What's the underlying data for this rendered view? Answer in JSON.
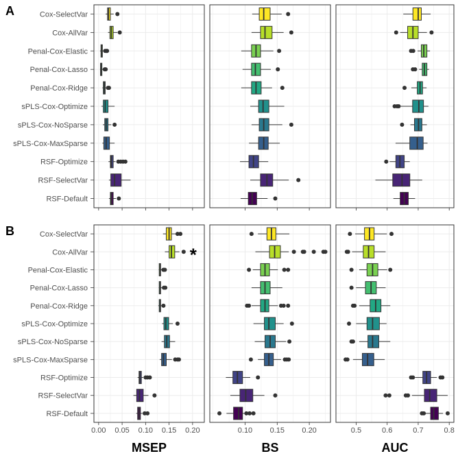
{
  "chart_data": {
    "type": "boxplot",
    "methods": [
      "Cox-SelectVar",
      "Cox-AllVar",
      "Penal-Cox-Elastic",
      "Penal-Cox-Lasso",
      "Penal-Cox-Ridge",
      "sPLS-Cox-Optimize",
      "sPLS-Cox-NoSparse",
      "sPLS-Cox-MaxSparse",
      "RSF-Optimize",
      "RSF-SelectVar",
      "RSF-Default"
    ],
    "fill_colors": [
      "#FDE725",
      "#B8DE29",
      "#7AD151",
      "#44BF70",
      "#22A884",
      "#21918C",
      "#2A788E",
      "#355F8D",
      "#414487",
      "#482576",
      "#440154"
    ],
    "columns": [
      {
        "label": "MSEP",
        "xlim": [
          -0.01,
          0.225
        ],
        "ticks": [
          0.0,
          0.05,
          0.1,
          0.15,
          0.2
        ],
        "tick_labels": [
          "0.00",
          "0.05",
          "0.10",
          "0.15",
          "0.20"
        ]
      },
      {
        "label": "BS",
        "xlim": [
          0.045,
          0.233
        ],
        "ticks": [
          0.1,
          0.15,
          0.2
        ],
        "tick_labels": [
          "0.10",
          "0.15",
          "0.20"
        ]
      },
      {
        "label": "AUC",
        "xlim": [
          0.435,
          0.815
        ],
        "ticks": [
          0.5,
          0.6,
          0.7,
          0.8
        ],
        "tick_labels": [
          "0.5",
          "0.6",
          "0.7",
          "0.8"
        ]
      }
    ],
    "panels": [
      {
        "label": "A",
        "series": {
          "MSEP": [
            {
              "stats": [
                0.015,
                0.019,
                0.021,
                0.025,
                0.032
              ],
              "outliers": [
                0.04
              ]
            },
            {
              "stats": [
                0.02,
                0.024,
                0.027,
                0.031,
                0.04
              ],
              "outliers": [
                0.045
              ]
            },
            {
              "stats": [
                0.003,
                0.005,
                0.006,
                0.008,
                0.01
              ],
              "outliers": [
                0.014,
                0.017,
                0.018
              ]
            },
            {
              "stats": [
                0.003,
                0.004,
                0.005,
                0.007,
                0.009
              ],
              "outliers": [
                0.013,
                0.015
              ]
            },
            {
              "stats": [
                0.008,
                0.01,
                0.012,
                0.014,
                0.016
              ],
              "outliers": [
                0.02,
                0.022
              ]
            },
            {
              "stats": [
                0.006,
                0.01,
                0.014,
                0.02,
                0.034
              ],
              "outliers": []
            },
            {
              "stats": [
                0.009,
                0.013,
                0.016,
                0.02,
                0.027
              ],
              "outliers": [
                0.034
              ]
            },
            {
              "stats": [
                0.008,
                0.011,
                0.016,
                0.023,
                0.034
              ],
              "outliers": []
            },
            {
              "stats": [
                0.021,
                0.025,
                0.027,
                0.031,
                0.036
              ],
              "outliers": [
                0.042,
                0.047,
                0.052,
                0.057
              ]
            },
            {
              "stats": [
                0.022,
                0.026,
                0.034,
                0.048,
                0.068
              ],
              "outliers": []
            },
            {
              "stats": [
                0.022,
                0.025,
                0.027,
                0.031,
                0.037
              ],
              "outliers": [
                0.043
              ]
            }
          ],
          "BS": [
            {
              "stats": [
                0.111,
                0.122,
                0.129,
                0.139,
                0.157
              ],
              "outliers": [
                0.167
              ]
            },
            {
              "stats": [
                0.11,
                0.124,
                0.131,
                0.142,
                0.16
              ],
              "outliers": [
                0.172
              ]
            },
            {
              "stats": [
                0.094,
                0.11,
                0.117,
                0.124,
                0.144
              ],
              "outliers": [
                0.153
              ]
            },
            {
              "stats": [
                0.096,
                0.11,
                0.116,
                0.124,
                0.14
              ],
              "outliers": [
                0.151
              ]
            },
            {
              "stats": [
                0.094,
                0.11,
                0.117,
                0.125,
                0.142
              ],
              "outliers": [
                0.158
              ]
            },
            {
              "stats": [
                0.108,
                0.121,
                0.128,
                0.137,
                0.161
              ],
              "outliers": []
            },
            {
              "stats": [
                0.11,
                0.122,
                0.129,
                0.137,
                0.158
              ],
              "outliers": [
                0.172
              ]
            },
            {
              "stats": [
                0.106,
                0.121,
                0.129,
                0.136,
                0.154
              ],
              "outliers": []
            },
            {
              "stats": [
                0.092,
                0.106,
                0.113,
                0.121,
                0.136
              ],
              "outliers": []
            },
            {
              "stats": [
                0.108,
                0.124,
                0.134,
                0.143,
                0.168
              ],
              "outliers": [
                0.183
              ]
            },
            {
              "stats": [
                0.093,
                0.105,
                0.111,
                0.118,
                0.135
              ],
              "outliers": [
                0.147
              ]
            }
          ],
          "AUC": [
            {
              "stats": [
                0.652,
                0.683,
                0.7,
                0.71,
                0.74
              ],
              "outliers": []
            },
            {
              "stats": [
                0.642,
                0.666,
                0.683,
                0.7,
                0.728
              ],
              "outliers": [
                0.629,
                0.743
              ]
            },
            {
              "stats": [
                0.698,
                0.71,
                0.718,
                0.728,
                0.738
              ],
              "outliers": [
                0.677,
                0.684
              ]
            },
            {
              "stats": [
                0.703,
                0.713,
                0.72,
                0.728,
                0.735
              ],
              "outliers": [
                0.683,
                0.69
              ]
            },
            {
              "stats": [
                0.678,
                0.697,
                0.706,
                0.714,
                0.727
              ],
              "outliers": [
                0.656
              ]
            },
            {
              "stats": [
                0.643,
                0.682,
                0.702,
                0.717,
                0.733
              ],
              "outliers": [
                0.624,
                0.632,
                0.637
              ]
            },
            {
              "stats": [
                0.675,
                0.688,
                0.701,
                0.712,
                0.728
              ],
              "outliers": [
                0.648
              ]
            },
            {
              "stats": [
                0.627,
                0.673,
                0.697,
                0.716,
                0.73
              ],
              "outliers": []
            },
            {
              "stats": [
                0.608,
                0.628,
                0.641,
                0.655,
                0.673
              ],
              "outliers": [
                0.597
              ]
            },
            {
              "stats": [
                0.562,
                0.618,
                0.648,
                0.673,
                0.713
              ],
              "outliers": []
            },
            {
              "stats": [
                0.62,
                0.642,
                0.655,
                0.668,
                0.69
              ],
              "outliers": []
            }
          ]
        }
      },
      {
        "label": "B",
        "series": {
          "MSEP": [
            {
              "stats": [
                0.137,
                0.144,
                0.15,
                0.155,
                0.164
              ],
              "outliers": [
                0.168,
                0.174
              ]
            },
            {
              "stats": [
                0.141,
                0.15,
                0.155,
                0.162,
                0.172
              ],
              "outliers": [
                0.181
              ]
            },
            {
              "stats": [
                0.128,
                0.129,
                0.131,
                0.132,
                0.136
              ],
              "outliers": [
                0.138,
                0.141
              ]
            },
            {
              "stats": [
                0.128,
                0.129,
                0.131,
                0.132,
                0.136
              ],
              "outliers": [
                0.139,
                0.142
              ]
            },
            {
              "stats": [
                0.127,
                0.129,
                0.131,
                0.132,
                0.134
              ],
              "outliers": [
                0.138
              ]
            },
            {
              "stats": [
                0.135,
                0.139,
                0.143,
                0.149,
                0.158
              ],
              "outliers": [
                0.168
              ]
            },
            {
              "stats": [
                0.134,
                0.14,
                0.145,
                0.151,
                0.163
              ],
              "outliers": []
            },
            {
              "stats": [
                0.13,
                0.134,
                0.138,
                0.144,
                0.156
              ],
              "outliers": [
                0.163,
                0.168,
                0.171
              ]
            },
            {
              "stats": [
                0.083,
                0.086,
                0.088,
                0.091,
                0.095
              ],
              "outliers": [
                0.1,
                0.104,
                0.109
              ]
            },
            {
              "stats": [
                0.074,
                0.081,
                0.087,
                0.095,
                0.106
              ],
              "outliers": [
                0.119
              ]
            },
            {
              "stats": [
                0.08,
                0.083,
                0.086,
                0.089,
                0.093
              ],
              "outliers": [
                0.098,
                0.104
              ]
            }
          ],
          "BS": [
            {
              "stats": [
                0.12,
                0.134,
                0.141,
                0.148,
                0.169
              ],
              "outliers": [
                0.11
              ]
            },
            {
              "stats": [
                0.116,
                0.138,
                0.146,
                0.155,
                0.168
              ],
              "outliers": [
                0.176,
                0.19,
                0.192,
                0.207,
                0.222,
                0.225
              ]
            },
            {
              "stats": [
                0.112,
                0.124,
                0.131,
                0.138,
                0.151
              ],
              "outliers": [
                0.106,
                0.161,
                0.167
              ]
            },
            {
              "stats": [
                0.11,
                0.124,
                0.131,
                0.139,
                0.158
              ],
              "outliers": []
            },
            {
              "stats": [
                0.11,
                0.124,
                0.131,
                0.137,
                0.151
              ],
              "outliers": [
                0.103,
                0.106,
                0.156,
                0.16,
                0.167
              ]
            },
            {
              "stats": [
                0.113,
                0.13,
                0.137,
                0.147,
                0.16
              ],
              "outliers": [
                0.173
              ]
            },
            {
              "stats": [
                0.115,
                0.131,
                0.139,
                0.147,
                0.164
              ],
              "outliers": [
                0.169
              ]
            },
            {
              "stats": [
                0.12,
                0.13,
                0.137,
                0.144,
                0.156
              ],
              "outliers": [
                0.109,
                0.162,
                0.165,
                0.168
              ]
            },
            {
              "stats": [
                0.07,
                0.081,
                0.088,
                0.096,
                0.108
              ],
              "outliers": [
                0.12
              ]
            },
            {
              "stats": [
                0.077,
                0.092,
                0.101,
                0.112,
                0.13
              ],
              "outliers": [
                0.147
              ]
            },
            {
              "stats": [
                0.071,
                0.082,
                0.09,
                0.096,
                0.111
              ],
              "outliers": [
                0.06,
                0.102,
                0.107,
                0.113
              ]
            }
          ],
          "AUC": [
            {
              "stats": [
                0.497,
                0.527,
                0.543,
                0.558,
                0.599
              ],
              "outliers": [
                0.48,
                0.614
              ]
            },
            {
              "stats": [
                0.487,
                0.523,
                0.54,
                0.558,
                0.595
              ],
              "outliers": [
                0.47,
                0.474
              ]
            },
            {
              "stats": [
                0.51,
                0.535,
                0.553,
                0.57,
                0.6
              ],
              "outliers": [
                0.485,
                0.61
              ]
            },
            {
              "stats": [
                0.5,
                0.53,
                0.548,
                0.565,
                0.595
              ],
              "outliers": [
                0.485
              ]
            },
            {
              "stats": [
                0.51,
                0.545,
                0.563,
                0.58,
                0.61
              ],
              "outliers": [
                0.49,
                0.495
              ]
            },
            {
              "stats": [
                0.5,
                0.535,
                0.553,
                0.575,
                0.598
              ],
              "outliers": [
                0.477
              ]
            },
            {
              "stats": [
                0.51,
                0.538,
                0.553,
                0.573,
                0.61
              ],
              "outliers": [
                0.485,
                0.49
              ]
            },
            {
              "stats": [
                0.49,
                0.52,
                0.537,
                0.557,
                0.592
              ],
              "outliers": [
                0.466,
                0.472
              ]
            },
            {
              "stats": [
                0.69,
                0.715,
                0.727,
                0.74,
                0.76
              ],
              "outliers": [
                0.677,
                0.683,
                0.772,
                0.778
              ]
            },
            {
              "stats": [
                0.68,
                0.72,
                0.737,
                0.76,
                0.795
              ],
              "outliers": [
                0.595,
                0.607,
                0.66,
                0.667
              ]
            },
            {
              "stats": [
                0.72,
                0.74,
                0.75,
                0.765,
                0.78
              ],
              "outliers": [
                0.712,
                0.718,
                0.795
              ]
            }
          ]
        }
      }
    ],
    "annotation": {
      "text": "*",
      "panel": "B",
      "column": "MSEP",
      "method": "Cox-AllVar"
    },
    "xlabels": [
      "MSEP",
      "BS",
      "AUC"
    ],
    "grid": true,
    "legend": "none"
  }
}
